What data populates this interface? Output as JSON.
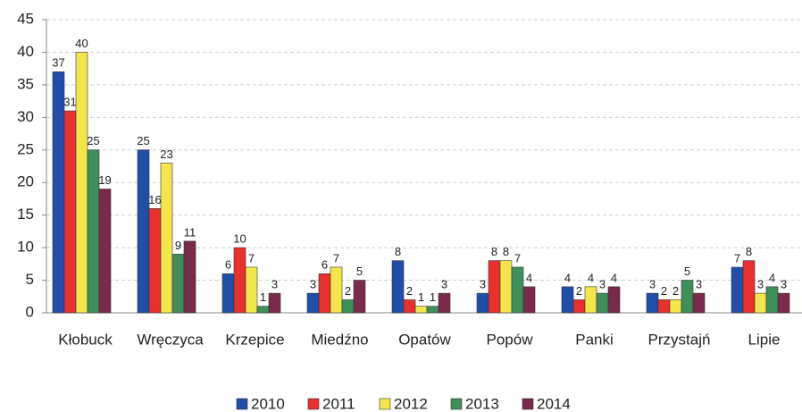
{
  "chart_data": {
    "type": "bar",
    "categories": [
      "Kłobuck",
      "Wręczyca",
      "Krzepice",
      "Miedźno",
      "Opatów",
      "Popów",
      "Panki",
      "Przystajń",
      "Lipie"
    ],
    "series": [
      {
        "name": "2010",
        "color": "#1f4fa8",
        "values": [
          37,
          25,
          6,
          3,
          8,
          3,
          4,
          3,
          7
        ]
      },
      {
        "name": "2011",
        "color": "#e8302f",
        "values": [
          31,
          16,
          10,
          6,
          2,
          8,
          2,
          2,
          8
        ]
      },
      {
        "name": "2012",
        "color": "#f3e64a",
        "values": [
          40,
          23,
          7,
          7,
          1,
          8,
          4,
          2,
          3
        ]
      },
      {
        "name": "2013",
        "color": "#3f8f5a",
        "values": [
          25,
          9,
          1,
          2,
          1,
          7,
          3,
          5,
          4
        ]
      },
      {
        "name": "2014",
        "color": "#7a2a4a",
        "values": [
          19,
          11,
          3,
          5,
          3,
          4,
          4,
          3,
          3
        ]
      }
    ],
    "ylim": [
      0,
      45
    ],
    "yticks": [
      0,
      5,
      10,
      15,
      20,
      25,
      30,
      35,
      40,
      45
    ],
    "grid": true,
    "legend": "bottom"
  }
}
